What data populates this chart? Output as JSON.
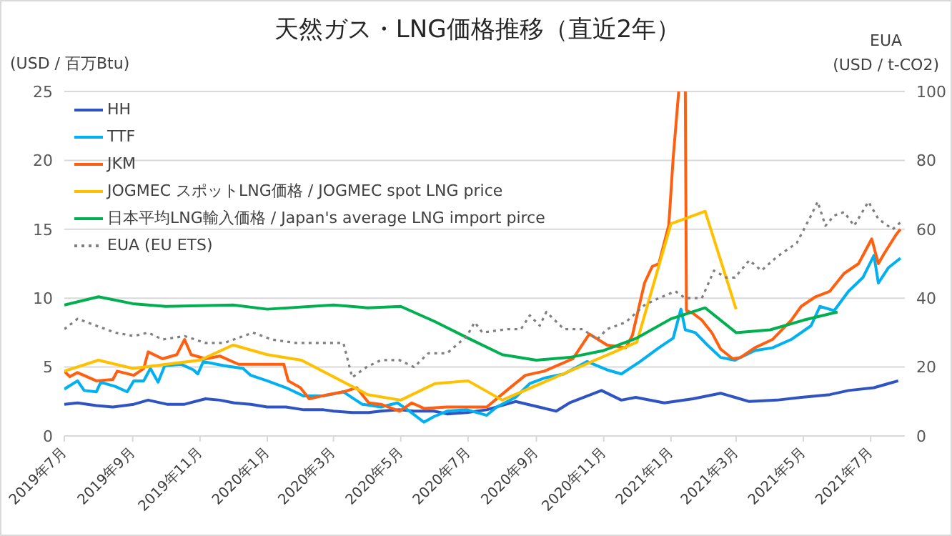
{
  "chart_data": {
    "type": "line",
    "title": "天然ガス・LNG価格推移（直近2年）",
    "ylabel": "(USD / 百万Btu)",
    "y2label": "EUA\n(USD / t-CO2)",
    "xlim": [
      "2019-07-01",
      "2021-08-01"
    ],
    "xticks": [
      {
        "value": "2019-07-01",
        "label": "2019年7月"
      },
      {
        "value": "2019-09-01",
        "label": "2019年9月"
      },
      {
        "value": "2019-11-01",
        "label": "2019年11月"
      },
      {
        "value": "2020-01-01",
        "label": "2020年1月"
      },
      {
        "value": "2020-03-01",
        "label": "2020年3月"
      },
      {
        "value": "2020-05-01",
        "label": "2020年5月"
      },
      {
        "value": "2020-07-01",
        "label": "2020年7月"
      },
      {
        "value": "2020-09-01",
        "label": "2020年9月"
      },
      {
        "value": "2020-11-01",
        "label": "2020年11月"
      },
      {
        "value": "2021-01-01",
        "label": "2021年1月"
      },
      {
        "value": "2021-03-01",
        "label": "2021年3月"
      },
      {
        "value": "2021-05-01",
        "label": "2021年5月"
      },
      {
        "value": "2021-07-01",
        "label": "2021年7月"
      }
    ],
    "ylim": [
      0,
      25
    ],
    "yticks": [
      0,
      5,
      10,
      15,
      20,
      25
    ],
    "y2lim": [
      0,
      100
    ],
    "y2ticks": [
      0,
      20,
      40,
      60,
      80,
      100
    ],
    "grid": "y",
    "legend": "top left",
    "series": [
      {
        "name": "HH",
        "color": "#2e54c4",
        "x": [
          "2019-07-01",
          "2019-07-13",
          "2019-07-30",
          "2019-08-14",
          "2019-09-02",
          "2019-09-15",
          "2019-10-02",
          "2019-10-18",
          "2019-11-06",
          "2019-11-19",
          "2019-12-02",
          "2019-12-17",
          "2020-01-01",
          "2020-01-18",
          "2020-02-03",
          "2020-02-21",
          "2020-03-01",
          "2020-03-18",
          "2020-04-02",
          "2020-04-13",
          "2020-04-30",
          "2020-05-13",
          "2020-05-31",
          "2020-06-12",
          "2020-06-30",
          "2020-07-18",
          "2020-08-13",
          "2020-09-19",
          "2020-10-01",
          "2020-10-30",
          "2020-11-17",
          "2020-11-30",
          "2020-12-26",
          "2021-01-21",
          "2021-02-15",
          "2021-02-28",
          "2021-03-13",
          "2021-04-07",
          "2021-04-29",
          "2021-05-25",
          "2021-06-11",
          "2021-07-04",
          "2021-07-17",
          "2021-07-26"
        ],
        "values": [
          2.3,
          2.4,
          2.2,
          2.1,
          2.3,
          2.6,
          2.3,
          2.3,
          2.7,
          2.6,
          2.4,
          2.3,
          2.1,
          2.1,
          1.9,
          1.9,
          1.8,
          1.7,
          1.7,
          1.8,
          1.9,
          1.8,
          1.8,
          1.6,
          1.7,
          1.9,
          2.5,
          1.8,
          2.4,
          3.3,
          2.6,
          2.8,
          2.4,
          2.7,
          3.1,
          2.8,
          2.5,
          2.6,
          2.8,
          3.0,
          3.3,
          3.5,
          3.8,
          4.0
        ]
      },
      {
        "name": "TTF",
        "color": "#00b0f0",
        "x": [
          "2019-07-01",
          "2019-07-13",
          "2019-07-19",
          "2019-07-30",
          "2019-08-03",
          "2019-08-16",
          "2019-08-27",
          "2019-09-02",
          "2019-09-11",
          "2019-09-17",
          "2019-09-24",
          "2019-09-30",
          "2019-10-15",
          "2019-10-26",
          "2019-10-30",
          "2019-11-04",
          "2019-11-23",
          "2019-12-10",
          "2019-12-17",
          "2020-01-01",
          "2020-01-18",
          "2020-02-03",
          "2020-02-21",
          "2020-03-10",
          "2020-03-27",
          "2020-04-13",
          "2020-04-28",
          "2020-05-09",
          "2020-05-22",
          "2020-05-31",
          "2020-06-12",
          "2020-06-30",
          "2020-07-18",
          "2020-07-27",
          "2020-08-13",
          "2020-08-26",
          "2020-09-08",
          "2020-09-26",
          "2020-10-17",
          "2020-11-04",
          "2020-11-17",
          "2020-12-04",
          "2020-12-21",
          "2021-01-03",
          "2021-01-10",
          "2021-01-14",
          "2021-01-23",
          "2021-02-03",
          "2021-02-15",
          "2021-02-28",
          "2021-03-18",
          "2021-04-03",
          "2021-04-20",
          "2021-05-08",
          "2021-05-16",
          "2021-05-29",
          "2021-06-11",
          "2021-06-24",
          "2021-07-04",
          "2021-07-08",
          "2021-07-17",
          "2021-07-28"
        ],
        "values": [
          3.4,
          4.0,
          3.3,
          3.2,
          3.9,
          3.6,
          3.2,
          4.0,
          4.0,
          4.9,
          3.9,
          5.1,
          5.2,
          4.8,
          4.5,
          5.4,
          5.1,
          4.9,
          4.4,
          4.0,
          3.5,
          2.9,
          2.9,
          3.2,
          2.3,
          2.1,
          2.4,
          1.8,
          1.0,
          1.4,
          1.8,
          1.9,
          1.5,
          2.1,
          2.8,
          3.8,
          4.2,
          4.5,
          5.4,
          4.8,
          4.5,
          5.4,
          6.4,
          7.1,
          9.2,
          7.7,
          7.5,
          6.6,
          5.7,
          5.5,
          6.2,
          6.4,
          7.0,
          8.0,
          9.4,
          9.1,
          10.5,
          11.5,
          13.1,
          11.1,
          12.2,
          12.9
        ]
      },
      {
        "name": "JKM",
        "color": "#ff5f0f",
        "x": [
          "2019-07-01",
          "2019-07-06",
          "2019-07-13",
          "2019-07-30",
          "2019-08-14",
          "2019-08-18",
          "2019-09-02",
          "2019-09-11",
          "2019-09-15",
          "2019-09-28",
          "2019-10-11",
          "2019-10-18",
          "2019-10-24",
          "2019-11-06",
          "2019-11-19",
          "2019-12-06",
          "2019-12-19",
          "2020-01-16",
          "2020-01-20",
          "2020-01-31",
          "2020-02-08",
          "2020-02-25",
          "2020-03-10",
          "2020-03-22",
          "2020-04-02",
          "2020-04-13",
          "2020-04-30",
          "2020-05-11",
          "2020-05-22",
          "2020-06-12",
          "2020-06-30",
          "2020-07-18",
          "2020-08-05",
          "2020-08-22",
          "2020-09-08",
          "2020-10-04",
          "2020-10-19",
          "2020-11-04",
          "2020-11-21",
          "2020-11-27",
          "2020-12-08",
          "2020-12-15",
          "2020-12-21",
          "2020-12-30",
          "2021-01-03",
          "2021-01-08",
          "2021-01-11",
          "2021-01-14",
          "2021-01-15",
          "2021-01-21",
          "2021-01-29",
          "2021-02-07",
          "2021-02-15",
          "2021-02-26",
          "2021-03-05",
          "2021-03-18",
          "2021-04-03",
          "2021-04-20",
          "2021-04-29",
          "2021-05-12",
          "2021-05-25",
          "2021-06-07",
          "2021-06-20",
          "2021-07-02",
          "2021-07-08",
          "2021-07-13",
          "2021-07-24",
          "2021-07-28"
        ],
        "values": [
          4.7,
          4.3,
          4.6,
          4.0,
          4.1,
          4.7,
          4.4,
          4.9,
          6.1,
          5.6,
          5.9,
          7.0,
          5.9,
          5.6,
          5.8,
          5.2,
          5.2,
          5.2,
          4.0,
          3.5,
          2.7,
          3.0,
          3.2,
          3.5,
          2.4,
          2.3,
          1.8,
          2.4,
          2.0,
          2.1,
          2.1,
          2.1,
          3.3,
          4.4,
          4.7,
          5.6,
          7.4,
          6.6,
          6.4,
          7.3,
          11.1,
          12.3,
          12.5,
          15.3,
          20.2,
          25,
          null,
          25,
          9.1,
          8.9,
          8.4,
          7.5,
          6.3,
          5.6,
          5.7,
          6.4,
          7.0,
          8.4,
          9.4,
          10.1,
          10.5,
          11.8,
          12.5,
          14.3,
          12.5,
          13.2,
          14.6,
          15.0
        ]
      },
      {
        "name": "JOGMEC スポットLNG価格 / JOGMEC spot LNG price",
        "color": "#ffc000",
        "x": [
          "2019-07-01",
          "2019-08-01",
          "2019-09-01",
          "2019-11-01",
          "2019-12-01",
          "2020-01-01",
          "2020-02-01",
          "2020-04-01",
          "2020-05-01",
          "2020-06-01",
          "2020-07-01",
          "2020-08-01",
          "2020-12-01",
          "2021-01-01",
          "2021-02-01",
          "2021-03-01"
        ],
        "values": [
          4.7,
          5.5,
          4.9,
          5.5,
          6.6,
          5.9,
          5.5,
          3.0,
          2.6,
          3.8,
          4.0,
          2.6,
          6.8,
          15.4,
          16.3,
          9.2
        ]
      },
      {
        "name": "日本平均LNG輸入価格 / Japan's average LNG import pirce",
        "color": "#00b050",
        "x": [
          "2019-07-01",
          "2019-08-01",
          "2019-09-01",
          "2019-10-01",
          "2019-12-01",
          "2020-01-01",
          "2020-03-01",
          "2020-04-01",
          "2020-05-01",
          "2020-06-01",
          "2020-07-01",
          "2020-08-01",
          "2020-09-01",
          "2020-10-01",
          "2020-11-01",
          "2020-12-01",
          "2021-01-01",
          "2021-02-01",
          "2021-03-01",
          "2021-04-01",
          "2021-05-01",
          "2021-06-01"
        ],
        "values": [
          9.5,
          10.1,
          9.6,
          9.4,
          9.5,
          9.2,
          9.5,
          9.3,
          9.4,
          8.3,
          7.1,
          5.9,
          5.5,
          5.7,
          6.2,
          7.1,
          8.5,
          9.3,
          7.5,
          7.7,
          8.4,
          9.0
        ]
      },
      {
        "name": "EUA (EU ETS)",
        "color": "#7f7f7f",
        "axis": "y2",
        "line_style": "dotted",
        "x": [
          "2019-07-01",
          "2019-07-13",
          "2019-07-30",
          "2019-08-16",
          "2019-09-02",
          "2019-09-15",
          "2019-09-28",
          "2019-10-18",
          "2019-11-06",
          "2019-11-23",
          "2019-12-19",
          "2020-01-05",
          "2020-01-27",
          "2020-02-21",
          "2020-03-10",
          "2020-03-18",
          "2020-03-31",
          "2020-04-13",
          "2020-04-30",
          "2020-05-13",
          "2020-05-26",
          "2020-06-12",
          "2020-06-30",
          "2020-07-07",
          "2020-07-14",
          "2020-08-05",
          "2020-08-18",
          "2020-08-26",
          "2020-09-04",
          "2020-09-10",
          "2020-09-26",
          "2020-10-13",
          "2020-10-26",
          "2020-11-04",
          "2020-11-21",
          "2020-12-08",
          "2020-12-21",
          "2021-01-05",
          "2021-01-14",
          "2021-01-29",
          "2021-02-09",
          "2021-02-20",
          "2021-02-28",
          "2021-03-13",
          "2021-03-24",
          "2021-04-07",
          "2021-04-25",
          "2021-05-08",
          "2021-05-14",
          "2021-05-21",
          "2021-05-29",
          "2021-06-07",
          "2021-06-16",
          "2021-06-29",
          "2021-07-08",
          "2021-07-21",
          "2021-07-28"
        ],
        "values": [
          31,
          34,
          32,
          30,
          29,
          30,
          28,
          29,
          27,
          27,
          30,
          28,
          27,
          27,
          27,
          17,
          20,
          22,
          22,
          20,
          24,
          24,
          29,
          33,
          30,
          31,
          31,
          35,
          32,
          36,
          31,
          31,
          28,
          31,
          33,
          38,
          40,
          42,
          40,
          40,
          48,
          46,
          46,
          51,
          48,
          52,
          56,
          64,
          68,
          61,
          64,
          65,
          61,
          68,
          63,
          60,
          62
        ]
      }
    ]
  }
}
